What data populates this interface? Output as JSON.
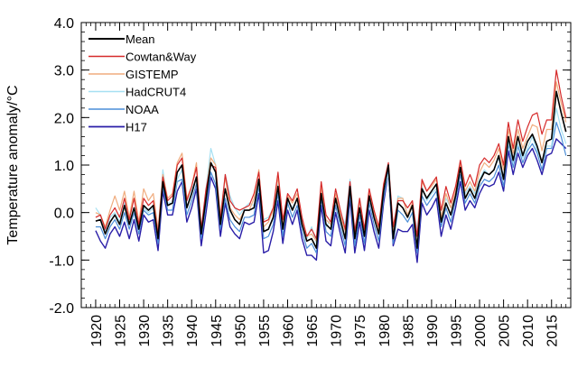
{
  "chart_data": {
    "type": "line",
    "title": "",
    "xlabel": "",
    "ylabel": "Temperature anomaly/°C",
    "xlim": [
      1917,
      2019
    ],
    "ylim": [
      -2.0,
      4.0
    ],
    "x_ticks": [
      1920,
      1925,
      1930,
      1935,
      1940,
      1945,
      1950,
      1955,
      1960,
      1965,
      1970,
      1975,
      1980,
      1985,
      1990,
      1995,
      2000,
      2005,
      2010,
      2015
    ],
    "x_tick_labels": [
      "1920",
      "1925",
      "1930",
      "1935",
      "1940",
      "1945",
      "1950",
      "1955",
      "1960",
      "1965",
      "1970",
      "1975",
      "1980",
      "1985",
      "1990",
      "1995",
      "2000",
      "2005",
      "2010",
      "2015"
    ],
    "y_ticks": [
      -2.0,
      -1.0,
      0.0,
      1.0,
      2.0,
      3.0,
      4.0
    ],
    "y_tick_labels": [
      "-2.0",
      "-1.0",
      "0.0",
      "1.0",
      "2.0",
      "3.0",
      "4.0"
    ],
    "grid": false,
    "legend_position": "top-left",
    "x_start": 1920,
    "series": [
      {
        "name": "Mean",
        "color": "#000000",
        "width": 1.6,
        "values": [
          -0.18,
          -0.15,
          -0.45,
          -0.2,
          -0.05,
          -0.25,
          0.15,
          -0.25,
          0.1,
          -0.35,
          0.15,
          0.05,
          0.15,
          -0.55,
          0.65,
          0.15,
          0.2,
          0.85,
          1.0,
          0.1,
          0.4,
          0.75,
          -0.45,
          0.3,
          1.05,
          0.85,
          -0.25,
          0.5,
          0.05,
          -0.15,
          -0.25,
          0.05,
          0.05,
          0.1,
          0.7,
          -0.4,
          -0.35,
          -0.1,
          0.55,
          -0.35,
          0.3,
          0.05,
          0.3,
          -0.25,
          -0.6,
          -0.55,
          -0.75,
          0.4,
          -0.25,
          -0.35,
          0.3,
          -0.15,
          -0.55,
          0.55,
          -0.55,
          0.1,
          -0.5,
          0.35,
          -0.1,
          -0.45,
          0.45,
          1.0,
          -0.55,
          0.2,
          0.1,
          -0.1,
          0.15,
          -0.75,
          0.5,
          0.3,
          0.45,
          0.6,
          -0.2,
          0.2,
          -0.05,
          0.35,
          0.95,
          0.3,
          0.5,
          0.3,
          0.65,
          0.85,
          0.8,
          0.9,
          1.2,
          0.7,
          1.6,
          1.1,
          1.6,
          1.2,
          1.5,
          1.65,
          1.4,
          1.05,
          1.5,
          1.55,
          2.55,
          2.1,
          1.7
        ]
      },
      {
        "name": "Cowtan&Way",
        "color": "#d62a2a",
        "width": 1.2,
        "values": [
          -0.1,
          -0.05,
          -0.35,
          -0.05,
          0.1,
          -0.1,
          0.3,
          -0.15,
          0.3,
          -0.25,
          0.3,
          0.15,
          0.25,
          -0.45,
          0.75,
          0.25,
          0.35,
          1.0,
          1.15,
          0.25,
          0.55,
          0.95,
          -0.35,
          0.5,
          1.0,
          0.95,
          -0.15,
          0.8,
          0.25,
          0.1,
          0.05,
          0.1,
          0.15,
          0.4,
          0.85,
          -0.2,
          -0.15,
          0.1,
          0.85,
          -0.15,
          0.4,
          0.25,
          0.5,
          -0.1,
          -0.5,
          -0.35,
          -0.55,
          0.65,
          -0.05,
          -0.2,
          0.5,
          0.05,
          -0.35,
          0.65,
          -0.4,
          0.3,
          -0.35,
          0.5,
          0.05,
          -0.3,
          0.6,
          1.05,
          -0.3,
          0.25,
          0.25,
          0.1,
          0.25,
          -0.5,
          0.7,
          0.45,
          0.6,
          0.75,
          0.05,
          0.55,
          0.2,
          0.55,
          1.1,
          0.55,
          0.8,
          0.55,
          1.0,
          1.15,
          1.05,
          1.2,
          1.45,
          1.0,
          1.9,
          1.35,
          1.95,
          1.5,
          1.8,
          2.05,
          2.1,
          1.65,
          1.95,
          1.95,
          3.0,
          2.45,
          2.0
        ]
      },
      {
        "name": "GISTEMP",
        "color": "#f0ac7e",
        "width": 1.2,
        "values": [
          0.0,
          -0.05,
          -0.3,
          0.05,
          0.35,
          0.05,
          0.45,
          -0.1,
          0.45,
          -0.2,
          0.5,
          0.25,
          0.4,
          -0.35,
          0.8,
          0.3,
          0.4,
          1.05,
          1.25,
          0.3,
          0.55,
          1.05,
          -0.35,
          0.45,
          1.15,
          1.0,
          -0.05,
          0.75,
          0.1,
          -0.05,
          -0.15,
          0.05,
          0.05,
          0.3,
          0.9,
          -0.3,
          -0.2,
          0.05,
          0.75,
          -0.25,
          0.35,
          0.2,
          0.4,
          -0.2,
          -0.5,
          -0.45,
          -0.6,
          0.55,
          -0.15,
          -0.25,
          0.4,
          -0.05,
          -0.4,
          0.6,
          -0.45,
          0.25,
          -0.4,
          0.4,
          0.0,
          -0.35,
          0.55,
          1.0,
          -0.45,
          0.3,
          0.3,
          -0.05,
          0.2,
          -0.5,
          0.65,
          0.45,
          0.55,
          0.7,
          -0.1,
          0.4,
          0.1,
          0.45,
          1.05,
          0.45,
          0.65,
          0.45,
          0.85,
          1.05,
          0.95,
          1.1,
          1.35,
          0.9,
          1.75,
          1.25,
          1.75,
          1.35,
          1.6,
          1.85,
          1.8,
          1.3,
          1.75,
          1.75,
          2.75,
          2.3,
          1.9
        ]
      },
      {
        "name": "HadCRUT4",
        "color": "#a6e0f2",
        "width": 1.2,
        "values": [
          0.1,
          -0.05,
          -0.4,
          -0.1,
          0.0,
          -0.2,
          0.2,
          -0.2,
          0.05,
          -0.3,
          0.1,
          0.0,
          0.1,
          -0.45,
          0.9,
          0.2,
          0.2,
          0.7,
          0.9,
          0.1,
          0.45,
          0.75,
          -0.35,
          0.5,
          1.35,
          1.0,
          -0.05,
          0.8,
          0.35,
          0.1,
          -0.05,
          0.1,
          0.2,
          0.15,
          0.6,
          -0.15,
          -0.1,
          0.1,
          0.6,
          -0.2,
          0.25,
          0.1,
          0.3,
          -0.1,
          -0.55,
          -0.3,
          -0.65,
          0.4,
          -0.3,
          -0.15,
          0.4,
          0.0,
          -0.25,
          0.7,
          -0.4,
          0.2,
          -0.35,
          0.3,
          -0.05,
          -0.3,
          0.5,
          0.8,
          -0.35,
          0.35,
          0.3,
          -0.05,
          0.15,
          -0.35,
          0.55,
          0.25,
          0.4,
          0.5,
          -0.05,
          0.3,
          0.1,
          0.35,
          1.0,
          0.4,
          0.55,
          0.4,
          0.7,
          0.9,
          0.8,
          0.9,
          1.15,
          0.75,
          1.5,
          1.05,
          1.45,
          1.15,
          1.35,
          1.6,
          1.3,
          1.05,
          1.4,
          1.4,
          2.2,
          1.75,
          1.45
        ]
      },
      {
        "name": "NOAA",
        "color": "#4b8ed8",
        "width": 1.2,
        "values": [
          -0.3,
          -0.3,
          -0.55,
          -0.3,
          -0.15,
          -0.35,
          0.0,
          -0.35,
          0.0,
          -0.45,
          0.05,
          -0.05,
          0.0,
          -0.65,
          0.55,
          0.05,
          0.05,
          0.65,
          0.7,
          -0.05,
          0.25,
          0.6,
          -0.55,
          0.15,
          0.85,
          0.6,
          -0.35,
          0.3,
          -0.15,
          -0.3,
          -0.4,
          -0.1,
          -0.1,
          -0.05,
          0.55,
          -0.55,
          -0.5,
          -0.25,
          0.4,
          -0.5,
          0.2,
          -0.1,
          0.15,
          -0.4,
          -0.75,
          -0.65,
          -0.85,
          0.3,
          -0.4,
          -0.5,
          0.15,
          -0.3,
          -0.7,
          0.4,
          -0.7,
          -0.05,
          -0.65,
          0.2,
          -0.25,
          -0.6,
          0.3,
          0.85,
          -0.65,
          0.05,
          -0.05,
          -0.2,
          0.0,
          -0.85,
          0.35,
          0.15,
          0.3,
          0.45,
          -0.3,
          0.1,
          -0.2,
          0.25,
          0.8,
          0.2,
          0.4,
          0.2,
          0.55,
          0.7,
          0.65,
          0.75,
          1.0,
          0.55,
          1.45,
          0.95,
          1.4,
          1.05,
          1.3,
          1.45,
          1.25,
          0.9,
          1.35,
          1.35,
          1.9,
          1.6,
          1.2
        ]
      },
      {
        "name": "H17",
        "color": "#2a1ea8",
        "width": 1.4,
        "values": [
          -0.38,
          -0.6,
          -0.75,
          -0.45,
          -0.3,
          -0.5,
          -0.2,
          -0.55,
          -0.15,
          -0.6,
          -0.05,
          -0.2,
          -0.15,
          -0.8,
          0.45,
          -0.05,
          -0.05,
          0.45,
          0.65,
          -0.2,
          0.1,
          0.5,
          -0.7,
          0.0,
          0.75,
          0.5,
          -0.5,
          0.2,
          -0.3,
          -0.45,
          -0.55,
          -0.2,
          -0.25,
          -0.2,
          0.4,
          -0.85,
          -0.8,
          -0.4,
          0.25,
          -0.65,
          0.05,
          -0.25,
          0.05,
          -0.55,
          -0.9,
          -0.9,
          -1.0,
          0.15,
          -0.6,
          -0.7,
          0.0,
          -0.45,
          -0.85,
          0.3,
          -0.85,
          -0.2,
          -0.8,
          0.05,
          -0.4,
          -0.75,
          0.2,
          0.85,
          -0.7,
          -0.35,
          -0.4,
          -0.4,
          -0.25,
          -1.05,
          0.2,
          -0.05,
          0.1,
          0.3,
          -0.5,
          -0.05,
          -0.35,
          0.1,
          0.65,
          0.05,
          0.25,
          0.1,
          0.4,
          0.6,
          0.55,
          0.6,
          0.85,
          0.45,
          1.3,
          0.8,
          1.25,
          0.95,
          1.2,
          1.35,
          1.1,
          0.8,
          1.2,
          1.25,
          1.55,
          1.45,
          1.35
        ]
      }
    ]
  }
}
